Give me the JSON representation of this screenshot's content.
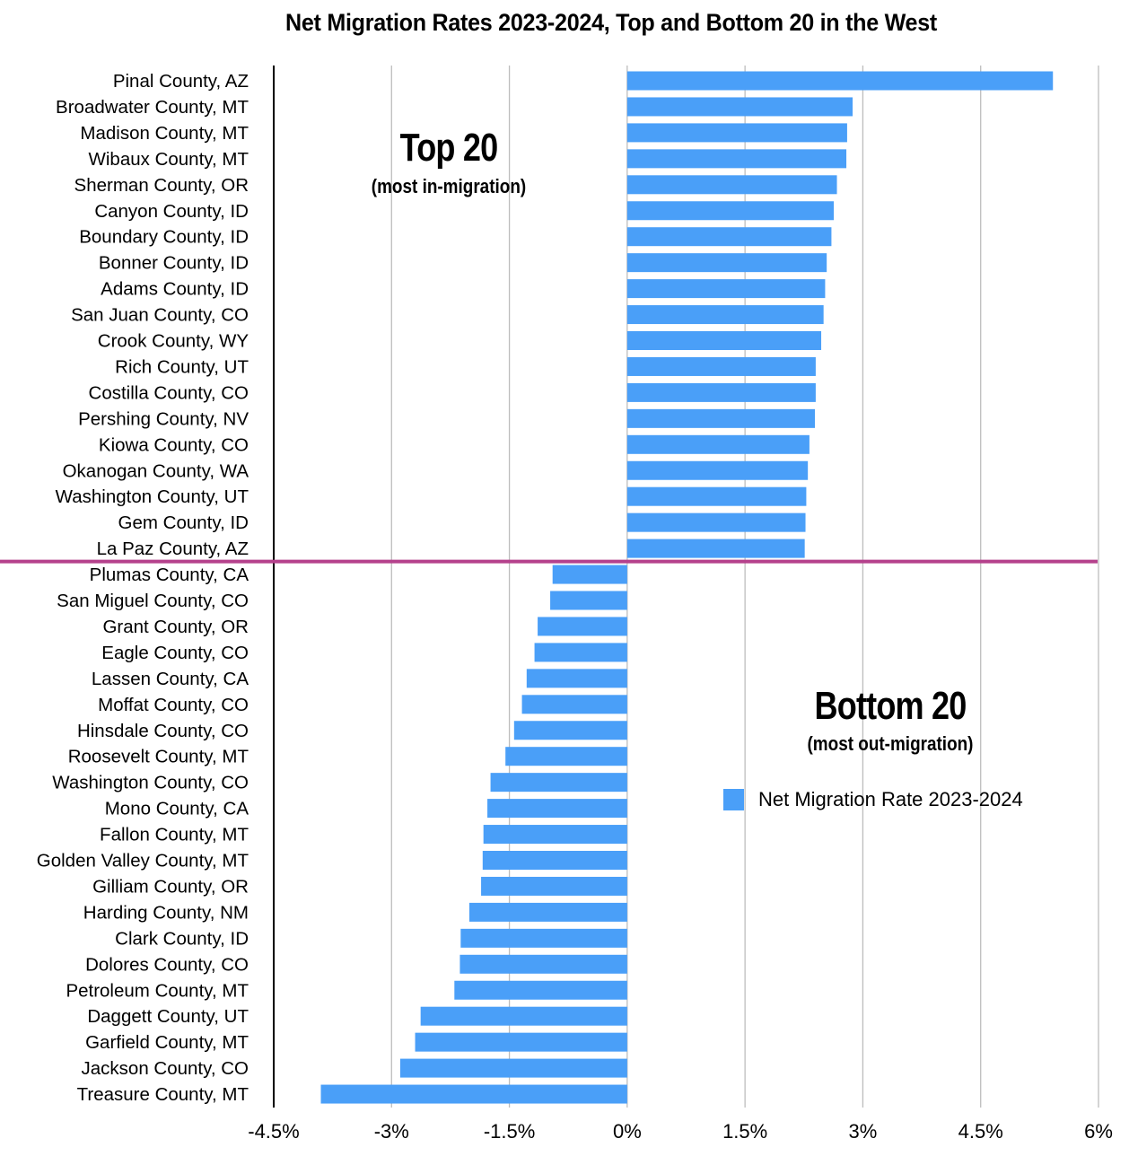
{
  "chart_data": {
    "type": "bar",
    "orientation": "horizontal",
    "title": "Net Migration Rates 2023-2024, Top and Bottom 20 in the West",
    "xlabel": "",
    "ylabel": "",
    "xlim": [
      -4.5,
      6
    ],
    "x_ticks": [
      -4.5,
      -3,
      -1.5,
      0,
      1.5,
      3,
      4.5,
      6
    ],
    "x_tick_labels": [
      "-4.5%",
      "-3%",
      "-1.5%",
      "0%",
      "1.5%",
      "3%",
      "4.5%",
      "6%"
    ],
    "grid": "vertical",
    "value_unit": "percent",
    "bar_color": "#4a9ff8",
    "divider_color": "#b5418c",
    "divider_between": [
      "La Paz County, AZ",
      "Plumas County, CA"
    ],
    "legend": {
      "position": "right-middle",
      "entries": [
        "Net Migration Rate 2023-2024"
      ]
    },
    "annotations": [
      {
        "title": "Top 20",
        "subtitle": "(most in-migration)"
      },
      {
        "title": "Bottom 20",
        "subtitle": "(most out-migration)"
      }
    ],
    "categories": [
      "Pinal County, AZ",
      "Broadwater County, MT",
      "Madison County, MT",
      "Wibaux County, MT",
      "Sherman County, OR",
      "Canyon County, ID",
      "Boundary County, ID",
      "Bonner County, ID",
      "Adams County, ID",
      "San Juan County, CO",
      "Crook County, WY",
      "Rich County, UT",
      "Costilla County, CO",
      "Pershing County, NV",
      "Kiowa County, CO",
      "Okanogan County, WA",
      "Washington County, UT",
      "Gem County, ID",
      "La Paz County, AZ",
      "Plumas County, CA",
      "San Miguel County, CO",
      "Grant County, OR",
      "Eagle County, CO",
      "Lassen County, CA",
      "Moffat County, CO",
      "Hinsdale County, CO",
      "Roosevelt County, MT",
      "Washington County, CO",
      "Mono County, CA",
      "Fallon County, MT",
      "Golden Valley County, MT",
      "Gilliam County, OR",
      "Harding County, NM",
      "Clark County, ID",
      "Dolores County, CO",
      "Petroleum County, MT",
      "Daggett County, UT",
      "Garfield County, MT",
      "Jackson County, CO",
      "Treasure County, MT"
    ],
    "series": [
      {
        "name": "Net Migration Rate 2023-2024",
        "values": [
          5.42,
          2.87,
          2.8,
          2.79,
          2.67,
          2.63,
          2.6,
          2.54,
          2.52,
          2.5,
          2.47,
          2.4,
          2.4,
          2.39,
          2.32,
          2.3,
          2.28,
          2.27,
          2.26,
          -0.95,
          -0.98,
          -1.14,
          -1.18,
          -1.28,
          -1.34,
          -1.44,
          -1.55,
          -1.74,
          -1.78,
          -1.83,
          -1.84,
          -1.86,
          -2.01,
          -2.12,
          -2.13,
          -2.2,
          -2.63,
          -2.7,
          -2.89,
          -3.9
        ]
      }
    ]
  }
}
